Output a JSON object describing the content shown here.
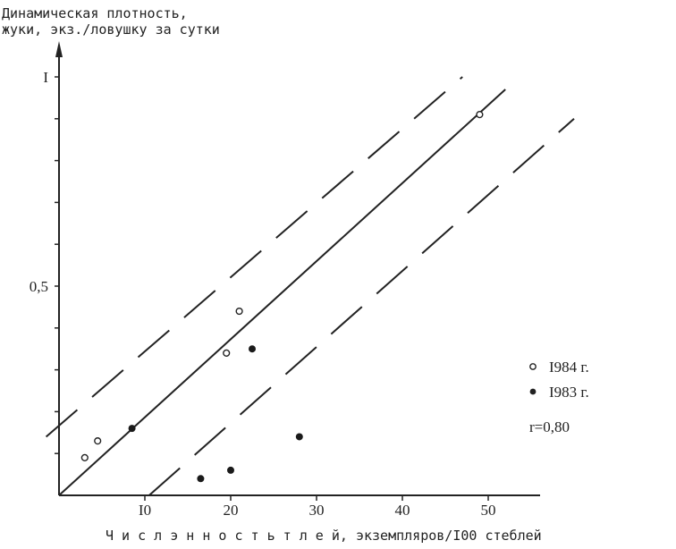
{
  "chart_data": {
    "type": "scatter",
    "ylabel_line1": "Динамическая плотность,",
    "ylabel_line2": "жуки, экз./ловушку за сутки",
    "xlabel": "Ч и с л э н н о с т ь   т л е й,  экземпляров/I00 стеблей",
    "x_ticks": [
      {
        "value": 10,
        "label": "I0"
      },
      {
        "value": 20,
        "label": "20"
      },
      {
        "value": 30,
        "label": "30"
      },
      {
        "value": 40,
        "label": "40"
      },
      {
        "value": 50,
        "label": "50"
      }
    ],
    "y_ticks": [
      {
        "value": 0.5,
        "label": "0,5"
      },
      {
        "value": 1.0,
        "label": "I"
      }
    ],
    "xlim": [
      0,
      58
    ],
    "ylim": [
      0,
      1.0
    ],
    "series": [
      {
        "name": "I984 г.",
        "marker": "open-circle",
        "points": [
          {
            "x": 3,
            "y": 0.09
          },
          {
            "x": 4.5,
            "y": 0.13
          },
          {
            "x": 19.5,
            "y": 0.34
          },
          {
            "x": 21,
            "y": 0.44
          },
          {
            "x": 49,
            "y": 0.91
          }
        ]
      },
      {
        "name": "I983 г.",
        "marker": "filled-circle",
        "points": [
          {
            "x": 8.5,
            "y": 0.16
          },
          {
            "x": 16.5,
            "y": 0.04
          },
          {
            "x": 20,
            "y": 0.06
          },
          {
            "x": 22.5,
            "y": 0.35
          },
          {
            "x": 28,
            "y": 0.14
          }
        ]
      }
    ],
    "regression": {
      "style": "solid",
      "from": {
        "x": 0,
        "y": 0.0
      },
      "to": {
        "x": 52,
        "y": 0.97
      }
    },
    "bounds": [
      {
        "style": "dashed",
        "from": {
          "x": -1.5,
          "y": 0.14
        },
        "to": {
          "x": 47,
          "y": 1.0
        }
      },
      {
        "style": "dashed",
        "from": {
          "x": 10.5,
          "y": 0.0
        },
        "to": {
          "x": 60,
          "y": 0.9
        }
      }
    ],
    "correlation": "r=0,80",
    "legend_position": "right"
  }
}
